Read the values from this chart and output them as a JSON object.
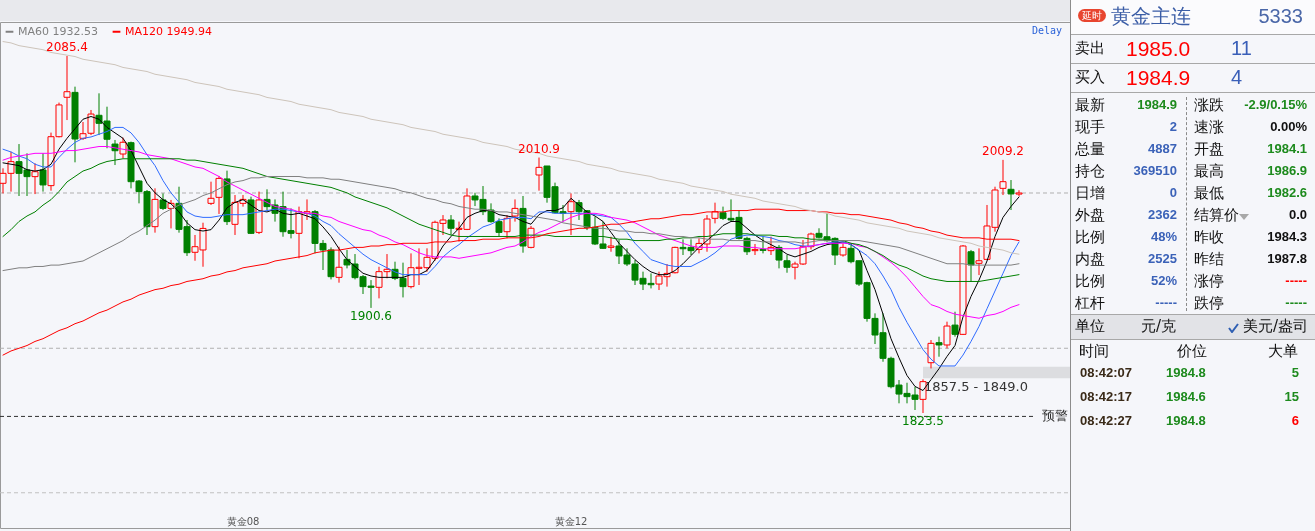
{
  "chart_data": [
    {
      "type": "candlestick",
      "categories": [
        null,
        null,
        null,
        null,
        null,
        null,
        null,
        null,
        null,
        null,
        null,
        null,
        null,
        null,
        null,
        null,
        null,
        null,
        null,
        null,
        null,
        null,
        null,
        null,
        null,
        null,
        null,
        null,
        null,
        null,
        "黄金08",
        null,
        null,
        null,
        null,
        null,
        null,
        null,
        null,
        null,
        null,
        null,
        null,
        null,
        null,
        null,
        null,
        null,
        null,
        null,
        null,
        null,
        null,
        null,
        null,
        null,
        null,
        null,
        null,
        null,
        null,
        null,
        null,
        null,
        null,
        null,
        null,
        null,
        null,
        null,
        null,
        "黄金12",
        null,
        null,
        null,
        null,
        null,
        null,
        null,
        null,
        null,
        null,
        null,
        null,
        null,
        null,
        null,
        null,
        null,
        null,
        null,
        null,
        null,
        null,
        null,
        null,
        null,
        null,
        null,
        null,
        null,
        null,
        null,
        null,
        null,
        null,
        null,
        null,
        null,
        null,
        null,
        null,
        null,
        null,
        null,
        null,
        null,
        null,
        null,
        null,
        null,
        null,
        null,
        null,
        null,
        null,
        null,
        null
      ],
      "ohlc": [
        [
          1992.0,
          2003.0,
          1984.6,
          1999.3
        ],
        [
          1999.3,
          2015.2,
          1985.9,
          2007.9
        ],
        [
          2007.9,
          2020.8,
          1982.7,
          1999.3
        ],
        [
          2001.8,
          2014.0,
          1982.7,
          1996.9
        ],
        [
          1996.9,
          2006.7,
          1984.1,
          2000.5
        ],
        [
          2001.8,
          2014.0,
          1985.9,
          1990.8
        ],
        [
          1990.3,
          2029.2,
          1986.6,
          2026.2
        ],
        [
          2026.2,
          2051.2,
          2025.7,
          2049.5
        ],
        [
          2055.1,
          2085.4,
          2038.4,
          2059.2
        ],
        [
          2058.7,
          2062.9,
          2007.4,
          2024.5
        ],
        [
          2025.0,
          2037.0,
          2023.8,
          2028.4
        ],
        [
          2028.7,
          2045.8,
          2027.4,
          2042.8
        ],
        [
          2041.9,
          2058.0,
          2027.4,
          2036.0
        ],
        [
          2037.7,
          2048.2,
          2017.7,
          2024.3
        ],
        [
          2020.8,
          2023.8,
          2005.4,
          2015.9
        ],
        [
          2013.5,
          2025.5,
          2010.3,
          2022.1
        ],
        [
          2021.8,
          2022.6,
          1988.3,
          1993.2
        ],
        [
          1993.7,
          1994.4,
          1977.3,
          1985.9
        ],
        [
          1985.9,
          1987.1,
          1954.1,
          1960.2
        ],
        [
          1960.2,
          1988.3,
          1955.8,
          1980.2
        ],
        [
          1979.8,
          1984.6,
          1972.4,
          1973.6
        ],
        [
          1973.6,
          1979.8,
          1958.9,
          1977.3
        ],
        [
          1977.3,
          1989.5,
          1955.8,
          1958.2
        ],
        [
          1960.2,
          1965.1,
          1938.7,
          1941.1
        ],
        [
          1941.4,
          1954.1,
          1935.2,
          1945.5
        ],
        [
          1943.1,
          1963.1,
          1930.8,
          1958.9
        ],
        [
          1977.3,
          1993.2,
          1976.1,
          1981.0
        ],
        [
          1981.7,
          1997.4,
          1969.5,
          1995.6
        ],
        [
          1995.2,
          2001.3,
          1961.4,
          1963.9
        ],
        [
          1961.9,
          1983.4,
          1954.1,
          1978.0
        ],
        [
          1977.3,
          1983.4,
          1974.9,
          1980.2
        ],
        [
          1979.8,
          1982.2,
          1954.8,
          1955.3
        ],
        [
          1956.0,
          1985.9,
          1954.8,
          1979.8
        ],
        [
          1980.2,
          1987.6,
          1972.4,
          1974.9
        ],
        [
          1976.1,
          1980.2,
          1963.9,
          1970.0
        ],
        [
          1974.9,
          1985.9,
          1952.8,
          1956.5
        ],
        [
          1957.3,
          1973.6,
          1951.6,
          1955.3
        ],
        [
          1955.3,
          1974.9,
          1937.0,
          1971.2
        ],
        [
          1970.0,
          1980.2,
          1965.1,
          1971.2
        ],
        [
          1971.2,
          1972.4,
          1940.6,
          1947.9
        ],
        [
          1947.9,
          1950.4,
          1928.4,
          1943.1
        ],
        [
          1943.1,
          1945.0,
          1921.5,
          1923.5
        ],
        [
          1923.0,
          1945.5,
          1919.1,
          1930.4
        ],
        [
          1936.2,
          1943.1,
          1929.6,
          1932.1
        ],
        [
          1932.8,
          1940.1,
          1921.5,
          1922.8
        ],
        [
          1923.5,
          1924.7,
          1910.8,
          1916.2
        ],
        [
          1916.6,
          1921.0,
          1900.6,
          1915.7
        ],
        [
          1915.7,
          1930.8,
          1907.6,
          1927.2
        ],
        [
          1927.2,
          1940.1,
          1922.3,
          1928.9
        ],
        [
          1928.9,
          1934.5,
          1921.0,
          1922.3
        ],
        [
          1922.3,
          1933.8,
          1908.3,
          1916.2
        ],
        [
          1916.2,
          1940.6,
          1914.9,
          1930.1
        ],
        [
          1929.6,
          1944.3,
          1917.4,
          1930.4
        ],
        [
          1930.1,
          1944.3,
          1927.2,
          1937.7
        ],
        [
          1937.0,
          1964.6,
          1935.2,
          1963.4
        ],
        [
          1962.6,
          1968.7,
          1954.1,
          1965.1
        ],
        [
          1965.1,
          1968.7,
          1954.1,
          1959.0
        ],
        [
          1958.2,
          1963.9,
          1949.2,
          1959.0
        ],
        [
          1958.2,
          1988.3,
          1957.7,
          1982.7
        ],
        [
          1982.7,
          1985.1,
          1975.3,
          1979.8
        ],
        [
          1980.2,
          1990.0,
          1968.7,
          1971.2
        ],
        [
          1972.4,
          1977.3,
          1963.1,
          1963.9
        ],
        [
          1963.9,
          1966.3,
          1952.8,
          1956.0
        ],
        [
          1956.5,
          1968.7,
          1951.6,
          1966.3
        ],
        [
          1968.0,
          1980.2,
          1963.9,
          1973.6
        ],
        [
          1973.6,
          1982.7,
          1941.1,
          1946.0
        ],
        [
          1945.0,
          1960.7,
          1944.3,
          1959.0
        ],
        [
          1998.1,
          2010.9,
          1986.6,
          2003.7
        ],
        [
          2004.7,
          2004.7,
          1977.8,
          1981.7
        ],
        [
          1989.5,
          1992.5,
          1970.0,
          1970.4
        ],
        [
          1971.2,
          1976.1,
          1963.9,
          1970.0
        ],
        [
          1971.2,
          1984.6,
          1954.1,
          1978.5
        ],
        [
          1977.8,
          1979.8,
          1965.1,
          1971.2
        ],
        [
          1971.9,
          1972.4,
          1957.7,
          1959.7
        ],
        [
          1959.7,
          1967.5,
          1946.7,
          1947.5
        ],
        [
          1947.5,
          1963.9,
          1943.8,
          1944.3
        ],
        [
          1945.0,
          1952.8,
          1941.8,
          1946.0
        ],
        [
          1946.0,
          1950.4,
          1932.8,
          1938.7
        ],
        [
          1939.4,
          1944.3,
          1931.3,
          1932.8
        ],
        [
          1932.8,
          1935.7,
          1917.4,
          1921.0
        ],
        [
          1922.3,
          1927.2,
          1913.7,
          1918.1
        ],
        [
          1918.6,
          1925.9,
          1914.9,
          1917.6
        ],
        [
          1918.1,
          1927.2,
          1913.7,
          1924.0
        ],
        [
          1923.5,
          1932.8,
          1916.2,
          1925.9
        ],
        [
          1926.4,
          1945.5,
          1925.9,
          1945.0
        ],
        [
          1945.0,
          1950.9,
          1939.4,
          1944.0
        ],
        [
          1945.0,
          1950.9,
          1939.4,
          1942.6
        ],
        [
          1943.5,
          1951.6,
          1940.6,
          1947.9
        ],
        [
          1947.5,
          1968.7,
          1941.8,
          1965.8
        ],
        [
          1966.3,
          1977.8,
          1962.6,
          1971.2
        ],
        [
          1970.4,
          1974.9,
          1965.1,
          1966.3
        ],
        [
          1966.3,
          1980.2,
          1963.9,
          1965.1
        ],
        [
          1967.0,
          1972.4,
          1950.9,
          1951.6
        ],
        [
          1951.6,
          1952.8,
          1939.4,
          1941.8
        ],
        [
          1942.6,
          1947.5,
          1939.4,
          1943.5
        ],
        [
          1943.5,
          1952.8,
          1940.6,
          1942.8
        ],
        [
          1942.6,
          1952.8,
          1939.4,
          1945.0
        ],
        [
          1945.0,
          1946.7,
          1929.6,
          1935.7
        ],
        [
          1935.2,
          1939.4,
          1926.4,
          1930.4
        ],
        [
          1930.4,
          1934.5,
          1921.5,
          1932.8
        ],
        [
          1932.8,
          1950.4,
          1932.1,
          1945.5
        ],
        [
          1945.5,
          1955.8,
          1943.5,
          1954.8
        ],
        [
          1955.3,
          1959.0,
          1951.6,
          1952.4
        ],
        [
          1952.8,
          1970.0,
          1949.2,
          1949.9
        ],
        [
          1951.6,
          1952.4,
          1932.1,
          1939.4
        ],
        [
          1939.4,
          1947.9,
          1938.2,
          1945.0
        ],
        [
          1944.3,
          1947.9,
          1933.3,
          1934.5
        ],
        [
          1935.2,
          1935.2,
          1916.7,
          1918.1
        ],
        [
          1919.1,
          1919.8,
          1890.5,
          1892.9
        ],
        [
          1892.9,
          1896.6,
          1874.1,
          1880.7
        ],
        [
          1882.4,
          1896.6,
          1861.1,
          1863.6
        ],
        [
          1863.6,
          1864.8,
          1841.6,
          1842.8
        ],
        [
          1844.0,
          1847.7,
          1830.6,
          1837.4
        ],
        [
          1837.9,
          1845.7,
          1830.6,
          1835.5
        ],
        [
          1836.7,
          1842.8,
          1825.7,
          1833.5
        ],
        [
          1833.5,
          1848.2,
          1823.5,
          1846.5
        ],
        [
          1860.4,
          1877.0,
          1856.2,
          1874.6
        ],
        [
          1875.1,
          1879.5,
          1864.8,
          1873.4
        ],
        [
          1873.4,
          1890.5,
          1870.9,
          1887.3
        ],
        [
          1888.0,
          1897.8,
          1879.5,
          1881.2
        ],
        [
          1881.2,
          1946.7,
          1880.7,
          1946.0
        ],
        [
          1941.8,
          1943.1,
          1919.8,
          1932.1
        ],
        [
          1933.3,
          1944.3,
          1924.7,
          1935.2
        ],
        [
          1936.2,
          1976.1,
          1935.7,
          1960.7
        ],
        [
          1959.7,
          1989.5,
          1956.5,
          1987.1
        ],
        [
          1988.3,
          2009.2,
          1983.4,
          1993.2
        ],
        [
          1987.6,
          1994.4,
          1972.4,
          1984.2
        ],
        [
          1984.1,
          1986.9,
          1982.6,
          1984.9
        ]
      ],
      "series": [
        {
          "type": "line",
          "color": "#000000",
          "values": [
            2007,
            2006,
            2005,
            2002,
            2001,
            2002,
            2006,
            2017,
            2025,
            2032,
            2039,
            2041,
            2039,
            2033,
            2029,
            2025,
            2016,
            2004,
            1992,
            1985,
            1980,
            1977,
            1971,
            1963,
            1958,
            1957,
            1958,
            1965,
            1974,
            1978,
            1980,
            1976,
            1972,
            1971,
            1973,
            1970,
            1969,
            1970,
            1968,
            1966,
            1960,
            1953,
            1944,
            1936,
            1931,
            1926,
            1924,
            1923,
            1923,
            1923,
            1923,
            1925,
            1925,
            1928,
            1936,
            1946,
            1953,
            1959,
            1967,
            1970,
            1972,
            1972,
            1969,
            1968,
            1967,
            1964,
            1962,
            1969,
            1972,
            1972,
            1974,
            1981,
            1976,
            1971,
            1968,
            1964,
            1956,
            1948,
            1942,
            1936,
            1931,
            1927,
            1925,
            1925,
            1928,
            1933,
            1939,
            1945,
            1950,
            1955,
            1961,
            1964,
            1964,
            1959,
            1954,
            1950,
            1947,
            1944,
            1940,
            1938,
            1940,
            1942,
            1945,
            1947,
            1948,
            1949,
            1947,
            1943,
            1928,
            1914,
            1896,
            1878,
            1864,
            1851,
            1843,
            1840,
            1848,
            1856,
            1865,
            1873,
            1894,
            1909,
            1921,
            1935,
            1953,
            1967,
            1975,
            1982
          ]
        },
        {
          "type": "line",
          "color": "#2f6bff",
          "values": [
            2017,
            2015,
            2012,
            2010,
            2006,
            2004,
            2004,
            2011,
            2017,
            2022,
            2025,
            2026,
            2028,
            2030,
            2033,
            2033,
            2029,
            2022,
            2013,
            2005,
            1994,
            1985,
            1978,
            1971,
            1968,
            1967,
            1967,
            1968,
            1969,
            1969,
            1969,
            1970,
            1971,
            1972,
            1973,
            1973,
            1972,
            1971,
            1970,
            1968,
            1964,
            1961,
            1955,
            1950,
            1945,
            1940,
            1936,
            1933,
            1930,
            1927,
            1925,
            1925,
            1925,
            1925,
            1931,
            1938,
            1943,
            1947,
            1952,
            1956,
            1960,
            1962,
            1965,
            1966,
            1967,
            1967,
            1966,
            1971,
            1971,
            1970,
            1970,
            1970,
            1970,
            1970,
            1969,
            1968,
            1967,
            1962,
            1956,
            1948,
            1942,
            1936,
            1934,
            1932,
            1931,
            1931,
            1931,
            1934,
            1937,
            1941,
            1946,
            1951,
            1953,
            1954,
            1954,
            1953,
            1952,
            1950,
            1949,
            1947,
            1946,
            1946,
            1947,
            1948,
            1949,
            1949,
            1947,
            1943,
            1939,
            1933,
            1924,
            1914,
            1901,
            1890,
            1880,
            1870,
            1863,
            1858,
            1858,
            1858,
            1866,
            1876,
            1887,
            1900,
            1913,
            1926,
            1939,
            1949
          ]
        },
        {
          "type": "line",
          "color": "#ff00ff",
          "values": [
            2009,
            2011,
            2012,
            2013,
            2014,
            2014,
            2014,
            2015,
            2016,
            2016,
            2017,
            2018,
            2019,
            2019,
            2018,
            2017,
            2016,
            2015,
            2013,
            2012,
            2011,
            2010,
            2008,
            2006,
            2004,
            2003,
            2000,
            1997,
            1993,
            1990,
            1987,
            1984,
            1981,
            1978,
            1975,
            1974,
            1973,
            1971,
            1970,
            1970,
            1968,
            1967,
            1964,
            1962,
            1960,
            1958,
            1957,
            1954,
            1952,
            1949,
            1947,
            1944,
            1941,
            1939,
            1938,
            1938,
            1938,
            1937,
            1938,
            1939,
            1940,
            1941,
            1943,
            1945,
            1946,
            1949,
            1953,
            1956,
            1958,
            1961,
            1964,
            1967,
            1969,
            1970,
            1970,
            1969,
            1967,
            1966,
            1965,
            1963,
            1960,
            1957,
            1954,
            1952,
            1950,
            1948,
            1946,
            1945,
            1945,
            1945,
            1946,
            1946,
            1946,
            1945,
            1945,
            1944,
            1944,
            1944,
            1944,
            1944,
            1945,
            1946,
            1947,
            1948,
            1948,
            1948,
            1948,
            1946,
            1945,
            1942,
            1938,
            1934,
            1929,
            1923,
            1916,
            1909,
            1903,
            1901,
            1898,
            1896,
            1895,
            1894,
            1893,
            1895,
            1896,
            1898,
            1901,
            1903
          ]
        },
        {
          "type": "line",
          "color": "#008000",
          "values": [
            1953,
            1958,
            1964,
            1968,
            1971,
            1976,
            1980,
            1986,
            1993,
            1997,
            2001,
            2003,
            2006,
            2008,
            2009,
            2010,
            2010,
            2010,
            2010,
            2010,
            2010,
            2010,
            2010,
            2009,
            2009,
            2008,
            2007,
            2006,
            2005,
            2004,
            2003,
            2001,
            1999,
            1997,
            1996,
            1995,
            1994,
            1993,
            1992,
            1991,
            1990,
            1989,
            1987,
            1985,
            1982,
            1980,
            1978,
            1976,
            1974,
            1971,
            1968,
            1965,
            1962,
            1960,
            1958,
            1956,
            1954,
            1953,
            1953,
            1953,
            1953,
            1953,
            1953,
            1953,
            1953,
            1954,
            1954,
            1954,
            1954,
            1953,
            1953,
            1953,
            1953,
            1953,
            1953,
            1953,
            1952,
            1951,
            1951,
            1950,
            1950,
            1950,
            1950,
            1951,
            1951,
            1952,
            1952,
            1953,
            1953,
            1954,
            1955,
            1955,
            1955,
            1955,
            1954,
            1954,
            1954,
            1953,
            1953,
            1952,
            1952,
            1951,
            1951,
            1951,
            1950,
            1950,
            1948,
            1947,
            1945,
            1942,
            1939,
            1935,
            1932,
            1930,
            1927,
            1924,
            1922,
            1921,
            1920,
            1920,
            1920,
            1920,
            1920,
            1921,
            1922,
            1923,
            1924,
            1925
          ]
        },
        {
          "type": "line",
          "name": "MA60 1932.53",
          "color": "#808080",
          "values": [
            1928,
            1929,
            1930,
            1930,
            1931,
            1931,
            1932,
            1932,
            1933,
            1934,
            1935,
            1938,
            1941,
            1944,
            1947,
            1950,
            1954,
            1957,
            1961,
            1965,
            1970,
            1973,
            1976,
            1978,
            1980,
            1983,
            1985,
            1988,
            1991,
            1993,
            1994,
            1996,
            1996,
            1997,
            1997,
            1997,
            1997,
            1997,
            1996,
            1996,
            1996,
            1995,
            1995,
            1994,
            1993,
            1992,
            1991,
            1990,
            1989,
            1988,
            1986,
            1985,
            1983,
            1981,
            1980,
            1978,
            1977,
            1975,
            1974,
            1973,
            1973,
            1972,
            1971,
            1971,
            1970,
            1969,
            1968,
            1967,
            1966,
            1965,
            1963,
            1962,
            1961,
            1960,
            1959,
            1959,
            1958,
            1957,
            1957,
            1956,
            1956,
            1955,
            1955,
            1954,
            1953,
            1953,
            1952,
            1952,
            1951,
            1951,
            1951,
            1950,
            1950,
            1950,
            1950,
            1949,
            1949,
            1949,
            1949,
            1949,
            1948,
            1949,
            1950,
            1950,
            1950,
            1950,
            1950,
            1950,
            1949,
            1948,
            1947,
            1946,
            1945,
            1943,
            1941,
            1939,
            1937,
            1935,
            1933,
            1933,
            1933,
            1932,
            1932,
            1932,
            1932,
            1932,
            1932,
            1933
          ]
        },
        {
          "type": "line",
          "name": "MA120 1949.94",
          "color": "#ff0000",
          "values": [
            1866,
            1869,
            1871,
            1873,
            1876,
            1878,
            1881,
            1884,
            1886,
            1889,
            1891,
            1894,
            1897,
            1899,
            1902,
            1905,
            1907,
            1910,
            1912,
            1914,
            1915,
            1917,
            1918,
            1920,
            1921,
            1922,
            1924,
            1925,
            1927,
            1928,
            1930,
            1931,
            1932,
            1933,
            1935,
            1936,
            1937,
            1938,
            1939,
            1941,
            1942,
            1943,
            1943,
            1944,
            1945,
            1945,
            1946,
            1946,
            1947,
            1947,
            1948,
            1948,
            1948,
            1948,
            1949,
            1949,
            1949,
            1950,
            1950,
            1950,
            1951,
            1951,
            1951,
            1952,
            1952,
            1952,
            1952,
            1953,
            1955,
            1956,
            1957,
            1958,
            1959,
            1959,
            1960,
            1961,
            1962,
            1962,
            1963,
            1964,
            1965,
            1966,
            1966,
            1967,
            1968,
            1969,
            1969,
            1970,
            1971,
            1971,
            1971,
            1972,
            1972,
            1972,
            1973,
            1973,
            1973,
            1973,
            1972,
            1972,
            1972,
            1972,
            1971,
            1971,
            1970,
            1970,
            1969,
            1969,
            1968,
            1967,
            1966,
            1965,
            1963,
            1962,
            1960,
            1959,
            1957,
            1956,
            1954,
            1953,
            1952,
            1952,
            1952,
            1951,
            1951,
            1951,
            1951,
            1950
          ]
        },
        {
          "type": "line",
          "color": "#cdc4ba",
          "values": [
            2096,
            2095,
            2093,
            2092,
            2091,
            2090,
            2088,
            2087,
            2086,
            2085,
            2083,
            2082,
            2081,
            2080,
            2079,
            2077,
            2076,
            2075,
            2074,
            2072,
            2071,
            2070,
            2069,
            2068,
            2066,
            2065,
            2064,
            2063,
            2061,
            2060,
            2059,
            2058,
            2057,
            2055,
            2054,
            2053,
            2052,
            2050,
            2049,
            2048,
            2047,
            2046,
            2044,
            2043,
            2042,
            2041,
            2039,
            2038,
            2037,
            2036,
            2035,
            2033,
            2032,
            2031,
            2030,
            2028,
            2027,
            2026,
            2025,
            2024,
            2022,
            2021,
            2020,
            2019,
            2017,
            2016,
            2015,
            2014,
            2012,
            2011,
            2010,
            2009,
            2008,
            2006,
            2005,
            2004,
            2003,
            2001,
            2000,
            1999,
            1998,
            1997,
            1995,
            1994,
            1993,
            1992,
            1990,
            1989,
            1988,
            1987,
            1986,
            1984,
            1983,
            1982,
            1981,
            1979,
            1978,
            1977,
            1976,
            1975,
            1973,
            1972,
            1971,
            1970,
            1968,
            1967,
            1966,
            1965,
            1963,
            1962,
            1961,
            1960,
            1959,
            1957,
            1956,
            1955,
            1954,
            1952,
            1951,
            1950,
            1949,
            1948,
            1946,
            1945,
            1944,
            1943,
            1941,
            1940
          ]
        }
      ],
      "annotations": [
        {
          "text": "2085.4",
          "y": 2085.4
        },
        {
          "text": "2010.9",
          "y": 2010.9
        },
        {
          "text": "1900.6",
          "y": 1900.6
        },
        {
          "text": "1823.5",
          "y": 1823.5
        },
        {
          "text": "2009.2",
          "y": 2009.2
        },
        "Delay"
      ],
      "ref_lines": [
        {
          "axis": "y",
          "value": 1984.9,
          "line_style": "dashed",
          "color": "#b0b0b0"
        },
        {
          "axis": "y",
          "value": 1871,
          "line_style": "dashed",
          "color": "#b0b0b0"
        },
        {
          "axis": "y",
          "value": 1821,
          "label": "预警",
          "line_style": "dashed",
          "color": "#303030"
        },
        {
          "axis": "y",
          "value": 1765,
          "line_style": "dashed",
          "color": "#c0c0c0"
        }
      ],
      "bands": [
        {
          "axis": "y",
          "from": 1849.0,
          "to": 1857.5,
          "label": "1857.5 - 1849.0",
          "color": "#dcdde0"
        }
      ],
      "legend": "top left"
    },
    {
      "type": "other",
      "annotations": [
        "延时",
        "黄金主连",
        "5333",
        "卖出",
        "1985.0",
        "11",
        "买入",
        "1984.9",
        "4",
        "最新",
        "1984.9",
        "涨跌",
        "-2.9/0.15%",
        "现手",
        "2",
        "速涨",
        "0.00%",
        "总量",
        "4887",
        "开盘",
        "1984.1",
        "持仓",
        "369510",
        "最高",
        "1986.9",
        "日增",
        "0",
        "最低",
        "1982.6",
        "外盘",
        "2362",
        "结算价",
        "0.0",
        "比例",
        "48%",
        "昨收",
        "1984.3",
        "内盘",
        "2525",
        "昨结",
        "1987.8",
        "比例",
        "52%",
        "涨停",
        "-----",
        "杠杆",
        "-----",
        "跌停",
        "-----",
        "单位",
        "元/克",
        "美元/盎司",
        "时间",
        "价位",
        "大单",
        "08:42:07",
        "1984.8",
        "5",
        "08:42:17",
        "1984.6",
        "15",
        "08:42:27",
        "1984.8",
        "6"
      ]
    }
  ]
}
